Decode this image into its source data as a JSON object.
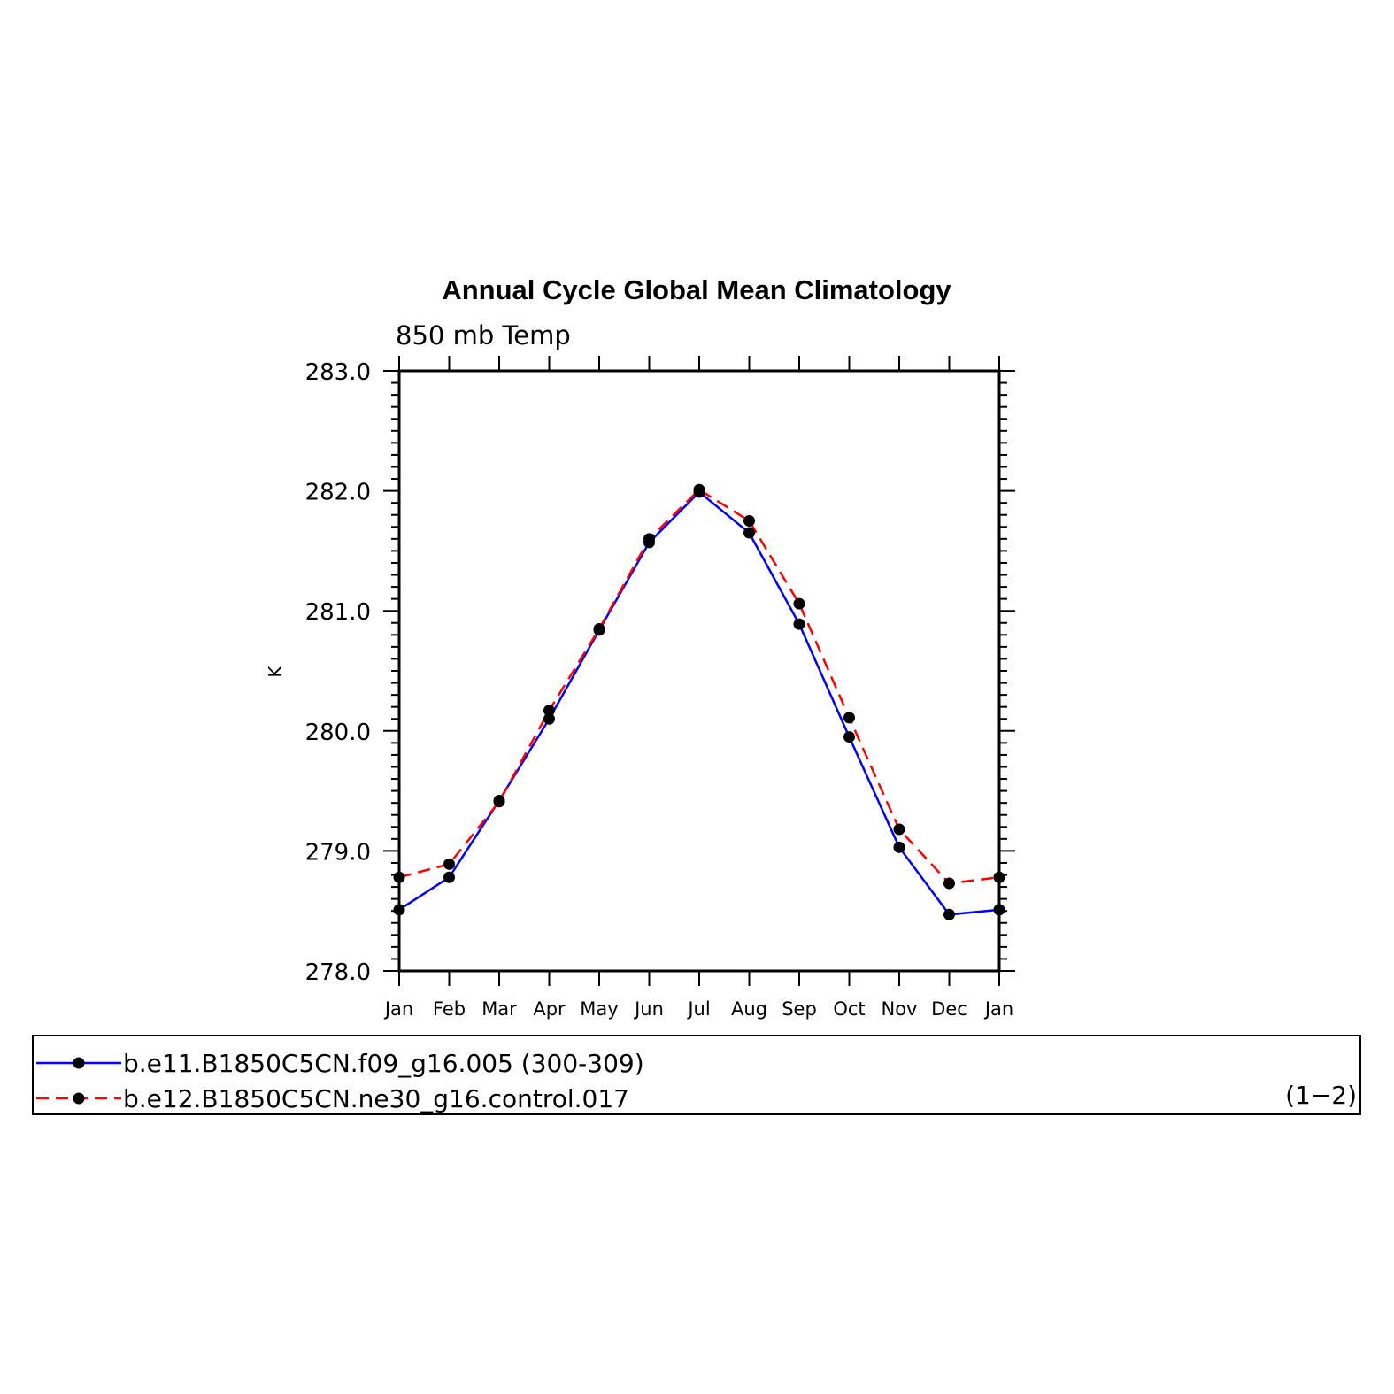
{
  "chart_data": {
    "type": "line",
    "title": "Annual Cycle Global Mean Climatology",
    "subtitle": "850 mb Temp",
    "ylabel": "K",
    "xlabel": "",
    "categories": [
      "Jan",
      "Feb",
      "Mar",
      "Apr",
      "May",
      "Jun",
      "Jul",
      "Aug",
      "Sep",
      "Oct",
      "Nov",
      "Dec",
      "Jan"
    ],
    "ylim": [
      278.0,
      283.0
    ],
    "yticks": [
      "278.0",
      "279.0",
      "280.0",
      "281.0",
      "282.0",
      "283.0"
    ],
    "grid": false,
    "legend_position": "bottom",
    "series": [
      {
        "name": "b.e11.B1850C5CN.f09_g16.005 (300-309)",
        "color": "#0000ff",
        "line_style": "solid",
        "marker": "filled-circle",
        "values": [
          278.51,
          278.78,
          279.42,
          280.1,
          280.84,
          281.57,
          281.99,
          281.65,
          280.89,
          279.95,
          279.03,
          278.47,
          278.51
        ]
      },
      {
        "name": "b.e12.B1850C5CN.ne30_g16.control.017",
        "color": "#ff0000",
        "line_style": "dashed",
        "marker": "filled-circle",
        "values": [
          278.78,
          278.89,
          279.41,
          280.17,
          280.85,
          281.6,
          282.01,
          281.75,
          281.06,
          280.11,
          279.18,
          278.73,
          278.78
        ]
      }
    ],
    "legend_note": "(1−2)"
  }
}
